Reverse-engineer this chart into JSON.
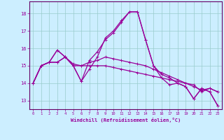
{
  "xlabel": "Windchill (Refroidissement éolien,°C)",
  "bg_color": "#cceeff",
  "line_color": "#990099",
  "grid_color": "#99cccc",
  "axis_color": "#990099",
  "spine_color": "#660066",
  "xlim": [
    -0.5,
    23.5
  ],
  "ylim": [
    12.5,
    18.7
  ],
  "yticks": [
    13,
    14,
    15,
    16,
    17,
    18
  ],
  "xticks": [
    0,
    1,
    2,
    3,
    4,
    5,
    6,
    7,
    8,
    9,
    10,
    11,
    12,
    13,
    14,
    15,
    16,
    17,
    18,
    19,
    20,
    21,
    22,
    23
  ],
  "series": [
    [
      14.0,
      15.0,
      15.2,
      15.9,
      15.5,
      15.0,
      14.1,
      15.3,
      15.8,
      16.5,
      16.9,
      17.5,
      18.1,
      18.1,
      16.5,
      15.0,
      14.5,
      14.3,
      14.0,
      13.8,
      13.1,
      13.7,
      13.5,
      12.7
    ],
    [
      14.0,
      15.0,
      15.2,
      15.2,
      15.5,
      15.0,
      15.0,
      15.0,
      15.0,
      15.0,
      14.9,
      14.8,
      14.7,
      14.6,
      14.5,
      14.4,
      14.3,
      14.2,
      14.1,
      14.0,
      13.9,
      13.5,
      13.7,
      13.5
    ],
    [
      14.0,
      15.0,
      15.2,
      15.2,
      15.5,
      15.1,
      15.0,
      15.2,
      15.3,
      15.5,
      15.4,
      15.3,
      15.2,
      15.1,
      15.0,
      14.8,
      14.6,
      14.4,
      14.2,
      14.0,
      13.8,
      13.6,
      13.7,
      13.5
    ],
    [
      14.0,
      15.0,
      15.2,
      15.9,
      15.5,
      15.0,
      14.1,
      14.8,
      15.5,
      16.6,
      17.0,
      17.6,
      18.1,
      18.1,
      16.5,
      15.0,
      14.3,
      13.9,
      14.0,
      13.8,
      13.1,
      13.7,
      13.5,
      12.7
    ]
  ],
  "marker_size": 2.0,
  "line_width": 0.9
}
